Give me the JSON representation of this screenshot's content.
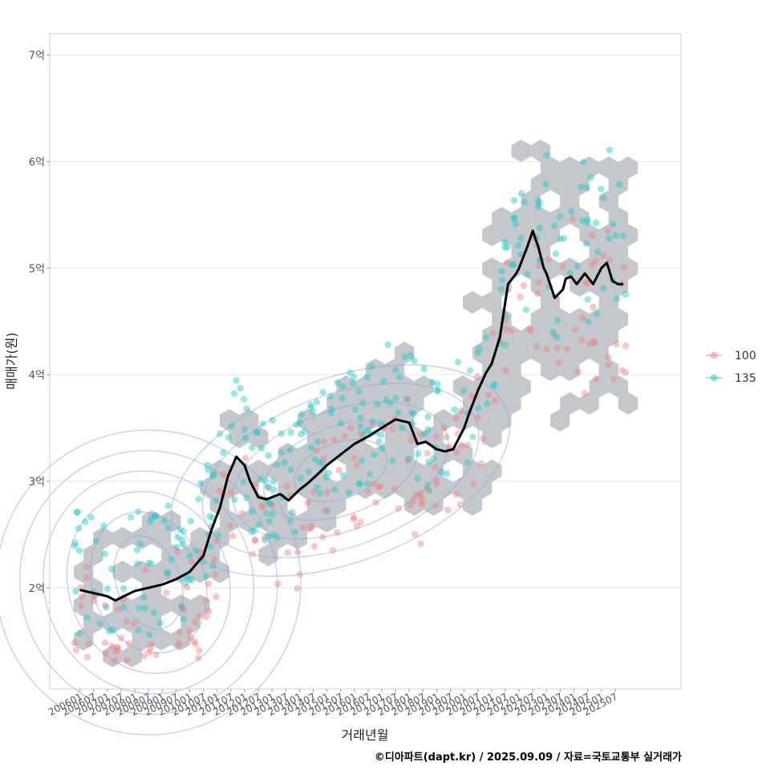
{
  "chart_data": {
    "type": "scatter",
    "xlabel": "거래년월",
    "ylabel": "매매가(원)",
    "caption": "©디아파트(dapt.kr) / 2025.09.09 / 자료=국토교통부 실거래가",
    "ylim": [
      1.05,
      7.2
    ],
    "y_ticks": [
      {
        "value": 2,
        "label": "2억"
      },
      {
        "value": 3,
        "label": "3억"
      },
      {
        "value": 4,
        "label": "4억"
      },
      {
        "value": 5,
        "label": "5억"
      },
      {
        "value": 6,
        "label": "6억"
      },
      {
        "value": 7,
        "label": "7억"
      }
    ],
    "xlim": [
      2004.9,
      2027.9
    ],
    "x_ticks": [
      "200601",
      "200607",
      "200701",
      "200707",
      "200801",
      "200807",
      "200901",
      "200907",
      "201001",
      "201007",
      "201101",
      "201107",
      "201201",
      "201207",
      "201301",
      "201307",
      "201401",
      "201407",
      "201501",
      "201507",
      "201601",
      "201607",
      "201701",
      "201707",
      "201801",
      "201807",
      "201901",
      "201907",
      "202001",
      "202007",
      "202101",
      "202107",
      "202201",
      "202207",
      "202301",
      "202307",
      "202401",
      "202407",
      "202501",
      "202507"
    ],
    "legend": [
      {
        "label": "100",
        "color": "#f08080"
      },
      {
        "label": "135",
        "color": "#20c8c8"
      }
    ],
    "series": [
      {
        "name": "moving-average",
        "color": "#000000",
        "x": [
          2006.0,
          2006.5,
          2007.0,
          2007.3,
          2007.6,
          2008.0,
          2008.5,
          2009.0,
          2009.5,
          2010.0,
          2010.5,
          2010.8,
          2011.1,
          2011.4,
          2011.7,
          2012.0,
          2012.2,
          2012.5,
          2012.8,
          2013.0,
          2013.3,
          2013.6,
          2014.0,
          2014.3,
          2014.6,
          2015.0,
          2015.5,
          2016.0,
          2016.5,
          2017.0,
          2017.5,
          2018.0,
          2018.3,
          2018.6,
          2019.0,
          2019.3,
          2019.6,
          2020.0,
          2020.2,
          2020.5,
          2020.8,
          2021.0,
          2021.3,
          2021.6,
          2021.9,
          2022.0,
          2022.3,
          2022.5,
          2022.7,
          2022.9,
          2023.0,
          2023.3,
          2023.6,
          2023.7,
          2023.9,
          2024.1,
          2024.4,
          2024.7,
          2025.0,
          2025.2,
          2025.4,
          2025.6,
          2025.8
        ],
        "y": [
          1.98,
          1.95,
          1.92,
          1.88,
          1.92,
          1.97,
          2.0,
          2.03,
          2.08,
          2.15,
          2.3,
          2.55,
          2.75,
          3.05,
          3.23,
          3.15,
          3.0,
          2.85,
          2.83,
          2.85,
          2.88,
          2.82,
          2.92,
          2.98,
          3.05,
          3.15,
          3.25,
          3.35,
          3.42,
          3.5,
          3.58,
          3.55,
          3.35,
          3.37,
          3.3,
          3.28,
          3.3,
          3.5,
          3.65,
          3.85,
          4.02,
          4.1,
          4.35,
          4.85,
          4.95,
          5.0,
          5.2,
          5.35,
          5.2,
          5.0,
          4.95,
          4.72,
          4.8,
          4.9,
          4.92,
          4.85,
          4.95,
          4.85,
          5.0,
          5.05,
          4.88,
          4.85,
          4.85
        ]
      }
    ]
  }
}
